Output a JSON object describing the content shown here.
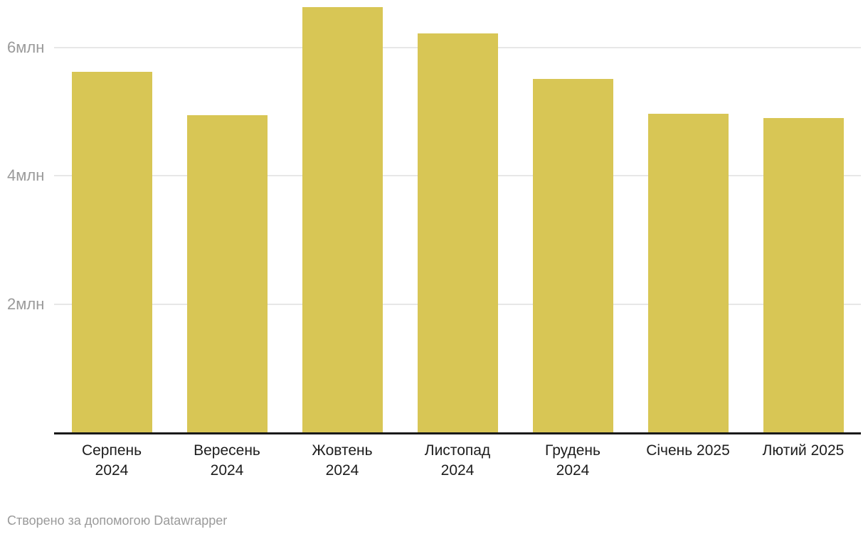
{
  "chart_data": {
    "type": "bar",
    "title": "",
    "xlabel": "",
    "ylabel": "",
    "unit": "млн",
    "categories": [
      "Серпень 2024",
      "Вересень 2024",
      "Жовтень 2024",
      "Листопад 2024",
      "Грудень 2024",
      "Січень 2025",
      "Лютий 2025"
    ],
    "category_lines": [
      [
        "Серпень",
        "2024"
      ],
      [
        "Вересень",
        "2024"
      ],
      [
        "Жовтень",
        "2024"
      ],
      [
        "Листопад",
        "2024"
      ],
      [
        "Грудень",
        "2024"
      ],
      [
        "Січень 2025"
      ],
      [
        "Лютий 2025"
      ]
    ],
    "values": [
      5.62,
      4.95,
      6.63,
      6.22,
      5.51,
      4.97,
      4.9
    ],
    "ylim": [
      0,
      6.74
    ],
    "y_ticks": [
      {
        "value": 2,
        "label": "2млн"
      },
      {
        "value": 4,
        "label": "4млн"
      },
      {
        "value": 6,
        "label": "6млн"
      }
    ],
    "grid": "horizontal",
    "legend": "none",
    "bar_color": "#d8c655"
  },
  "colors": {
    "bar": "#d8c655",
    "gridline": "#e7e7e7",
    "axis_line": "#1a1a1a",
    "x_label": "#1d1d1d",
    "y_label": "#9a9a9a",
    "footer_text": "#9a9a9a",
    "background": "#ffffff"
  },
  "footer": {
    "text": "Створено за допомогою Datawrapper"
  }
}
